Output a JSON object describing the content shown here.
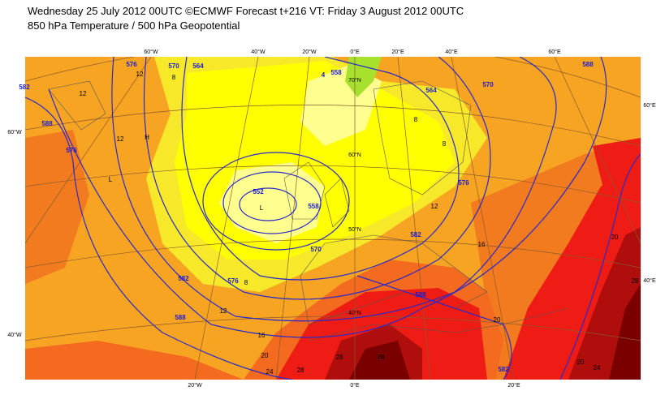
{
  "header": {
    "title": "Wednesday 25 July 2012 00UTC ©ECMWF Forecast t+216 VT: Friday 3 August 2012 00UTC",
    "subtitle": "850 hPa Temperature / 500 hPa Geopotential"
  },
  "graticule": [
    "60°W",
    "40°W",
    "20°W",
    "0°E",
    "20°E",
    "40°E",
    "60°E",
    "70°N",
    "60°N",
    "50°N",
    "40°N",
    "60°W",
    "40°W",
    "60°E",
    "40°E",
    "20°W",
    "0°E",
    "20°E"
  ],
  "contour_labels": [
    "576",
    "570",
    "564",
    "558",
    "4",
    "582",
    "12",
    "8",
    "12",
    "588",
    "12",
    "H",
    "L",
    "576",
    "8",
    "564",
    "570",
    "588",
    "8",
    "552",
    "L",
    "558",
    "576",
    "12",
    "570",
    "582",
    "16",
    "582",
    "576",
    "8",
    "12",
    "588",
    "16",
    "20",
    "24",
    "28",
    "28",
    "20",
    "588",
    "20",
    "28",
    "24",
    "20",
    "582",
    "28"
  ]
}
